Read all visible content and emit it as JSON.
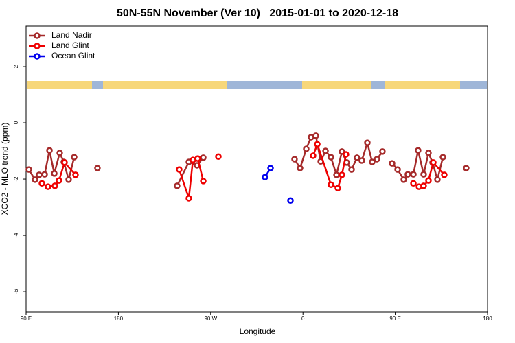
{
  "chart_data": {
    "type": "line",
    "title": "50N-55N November (Ver 10)   2015-01-01 to 2020-12-18",
    "x_label": "Longitude",
    "y_label": "XCO2 - MLO trend (ppm)",
    "xlim": [
      90,
      540
    ],
    "ylim": [
      -6.73,
      3.44
    ],
    "xticks": [
      {
        "value": 90,
        "label": "90 E"
      },
      180,
      {
        "value": 270,
        "label": "90 W"
      },
      {
        "value": 360,
        "label": "0"
      },
      {
        "value": 450,
        "label": "90 E"
      },
      {
        "value": 540,
        "label": "180"
      }
    ],
    "yticks": [
      -6,
      -4,
      -2,
      0,
      2
    ],
    "legend": "top-left",
    "series": [
      {
        "name": "Land Nadir",
        "color": "#a52a2a",
        "x": [
          92.7,
          98.7,
          102.7,
          108.1,
          112.8,
          117.5,
          122.8,
          126.8,
          131.5,
          136.9,
          null,
          159.6,
          null,
          237.3,
          248.7,
          256.7,
          262.8,
          null,
          351.8,
          357.2,
          363.2,
          367.9,
          372.6,
          377.3,
          382.0,
          387.3,
          392.7,
          398.0,
          402.7,
          407.4,
          412.7,
          417.4,
          422.8,
          427.5,
          432.2,
          437.5,
          null,
          446.9,
          452.3,
          458.3,
          462.3,
          467.7,
          472.3,
          477.7,
          482.4,
          486.4,
          491.1,
          496.5,
          null,
          519.2
        ],
        "values": [
          -1.66,
          -2.02,
          -1.85,
          -1.83,
          -0.98,
          -1.8,
          -1.07,
          -1.39,
          -2.02,
          -1.22,
          null,
          -1.61,
          null,
          -2.24,
          -1.39,
          -1.51,
          -1.24,
          null,
          -1.29,
          -1.61,
          -0.93,
          -0.51,
          -0.46,
          -1.37,
          -1.0,
          -1.22,
          -1.85,
          -1.02,
          -1.41,
          -1.66,
          -1.24,
          -1.34,
          -0.71,
          -1.39,
          -1.29,
          -1.02,
          null,
          -1.44,
          -1.66,
          -2.02,
          -1.83,
          -1.83,
          -0.98,
          -1.83,
          -1.07,
          -1.41,
          -2.02,
          -1.22,
          null,
          -1.61
        ]
      },
      {
        "name": "Land Glint",
        "color": "#ee0000",
        "x": [
          105.4,
          111.4,
          118.1,
          122.1,
          127.5,
          138.2,
          null,
          239.3,
          248.7,
          252.7,
          257.4,
          262.8,
          null,
          277.5,
          null,
          369.9,
          374.0,
          387.3,
          394.0,
          398.0,
          402.0,
          null,
          467.7,
          473.1,
          477.7,
          482.4,
          487.1,
          497.8
        ],
        "values": [
          -2.15,
          -2.27,
          -2.24,
          -2.05,
          -1.41,
          -1.85,
          null,
          -1.66,
          -2.68,
          -1.32,
          -1.27,
          -2.07,
          null,
          -1.2,
          null,
          -1.17,
          -0.76,
          -2.2,
          -2.32,
          -1.85,
          -1.12,
          null,
          -2.15,
          -2.27,
          -2.24,
          -2.05,
          -1.41,
          -1.85
        ]
      },
      {
        "name": "Ocean Glint",
        "color": "#0000ee",
        "x": [
          323.0,
          328.4,
          null,
          347.8
        ],
        "values": [
          -1.93,
          -1.61,
          null,
          -2.76
        ]
      }
    ]
  }
}
